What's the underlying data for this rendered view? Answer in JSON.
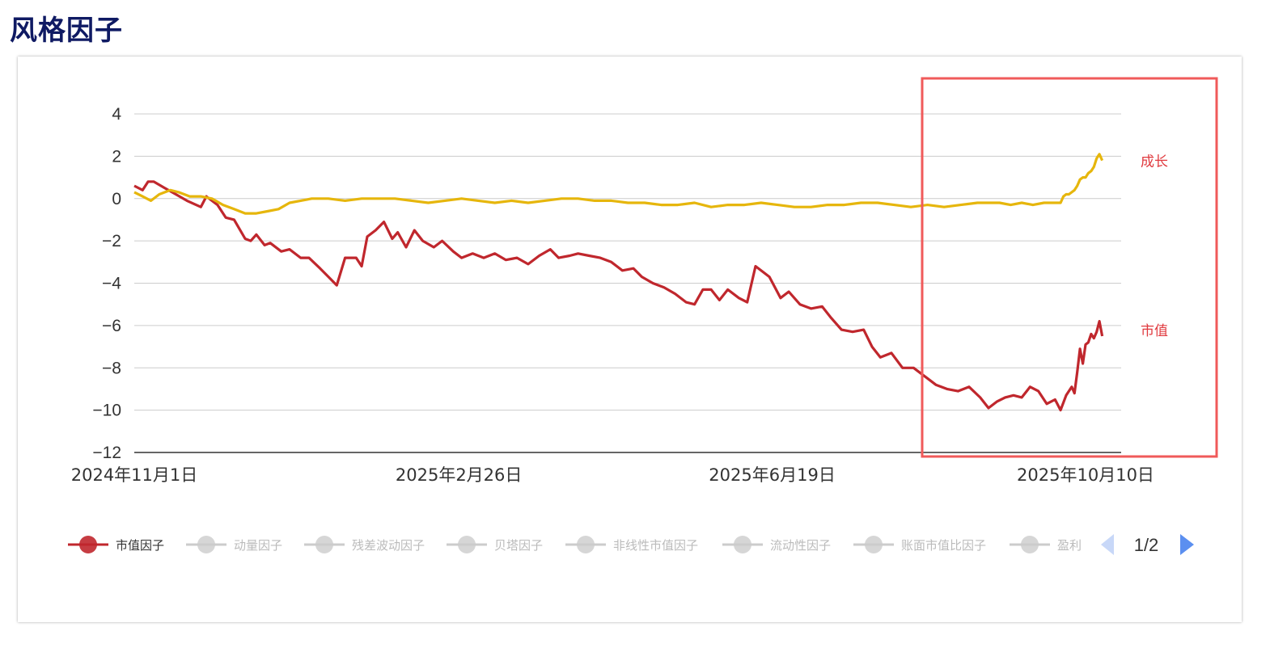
{
  "page": {
    "title": "风格因子"
  },
  "colors": {
    "market_cap": "#c0272d",
    "growth": "#e6b60c",
    "highlight": "#f05a5a",
    "inactive": "#cccccc",
    "pager_active": "#5b8ff0",
    "pager_inactive": "#c8d8f8"
  },
  "chart_data": {
    "type": "line",
    "yticks": [
      4,
      2,
      0,
      -2,
      -4,
      -6,
      -8,
      -10,
      -12
    ],
    "ylim": [
      -12,
      4
    ],
    "x_tick_labels": [
      "2024年11月1日",
      "2025年2月26日",
      "2025年6月19日",
      "2025年10月10日"
    ],
    "x_range": [
      "2024-11-01",
      "2025-10-10"
    ],
    "grid": true,
    "series": [
      {
        "name": "市值因子",
        "end_label": "市值",
        "color": "#c0272d",
        "points": [
          [
            "2024-11-01",
            0.6
          ],
          [
            "2024-11-04",
            0.4
          ],
          [
            "2024-11-06",
            0.8
          ],
          [
            "2024-11-08",
            0.8
          ],
          [
            "2024-11-12",
            0.5
          ],
          [
            "2024-11-16",
            0.2
          ],
          [
            "2024-11-20",
            -0.1
          ],
          [
            "2024-11-25",
            -0.4
          ],
          [
            "2024-11-27",
            0.1
          ],
          [
            "2024-12-01",
            -0.3
          ],
          [
            "2024-12-04",
            -0.9
          ],
          [
            "2024-12-07",
            -1.0
          ],
          [
            "2024-12-11",
            -1.9
          ],
          [
            "2024-12-13",
            -2.0
          ],
          [
            "2024-12-15",
            -1.7
          ],
          [
            "2024-12-18",
            -2.2
          ],
          [
            "2024-12-20",
            -2.1
          ],
          [
            "2024-12-24",
            -2.5
          ],
          [
            "2024-12-27",
            -2.4
          ],
          [
            "2024-12-31",
            -2.8
          ],
          [
            "2025-01-03",
            -2.8
          ],
          [
            "2025-01-07",
            -3.3
          ],
          [
            "2025-01-10",
            -3.7
          ],
          [
            "2025-01-13",
            -4.1
          ],
          [
            "2025-01-16",
            -2.8
          ],
          [
            "2025-01-20",
            -2.8
          ],
          [
            "2025-01-22",
            -3.2
          ],
          [
            "2025-01-24",
            -1.8
          ],
          [
            "2025-01-27",
            -1.5
          ],
          [
            "2025-01-30",
            -1.1
          ],
          [
            "2025-02-02",
            -1.9
          ],
          [
            "2025-02-04",
            -1.6
          ],
          [
            "2025-02-07",
            -2.3
          ],
          [
            "2025-02-10",
            -1.5
          ],
          [
            "2025-02-13",
            -2.0
          ],
          [
            "2025-02-17",
            -2.3
          ],
          [
            "2025-02-20",
            -2.0
          ],
          [
            "2025-02-24",
            -2.5
          ],
          [
            "2025-02-27",
            -2.8
          ],
          [
            "2025-03-03",
            -2.6
          ],
          [
            "2025-03-07",
            -2.8
          ],
          [
            "2025-03-11",
            -2.6
          ],
          [
            "2025-03-15",
            -2.9
          ],
          [
            "2025-03-19",
            -2.8
          ],
          [
            "2025-03-23",
            -3.1
          ],
          [
            "2025-03-27",
            -2.7
          ],
          [
            "2025-03-31",
            -2.4
          ],
          [
            "2025-04-03",
            -2.8
          ],
          [
            "2025-04-07",
            -2.7
          ],
          [
            "2025-04-10",
            -2.6
          ],
          [
            "2025-04-14",
            -2.7
          ],
          [
            "2025-04-18",
            -2.8
          ],
          [
            "2025-04-22",
            -3.0
          ],
          [
            "2025-04-26",
            -3.4
          ],
          [
            "2025-04-30",
            -3.3
          ],
          [
            "2025-05-03",
            -3.7
          ],
          [
            "2025-05-07",
            -4.0
          ],
          [
            "2025-05-11",
            -4.2
          ],
          [
            "2025-05-15",
            -4.5
          ],
          [
            "2025-05-19",
            -4.9
          ],
          [
            "2025-05-22",
            -5.0
          ],
          [
            "2025-05-25",
            -4.3
          ],
          [
            "2025-05-28",
            -4.3
          ],
          [
            "2025-05-31",
            -4.8
          ],
          [
            "2025-06-03",
            -4.3
          ],
          [
            "2025-06-07",
            -4.7
          ],
          [
            "2025-06-10",
            -4.9
          ],
          [
            "2025-06-13",
            -3.2
          ],
          [
            "2025-06-16",
            -3.5
          ],
          [
            "2025-06-18",
            -3.7
          ],
          [
            "2025-06-22",
            -4.7
          ],
          [
            "2025-06-25",
            -4.4
          ],
          [
            "2025-06-29",
            -5.0
          ],
          [
            "2025-07-03",
            -5.2
          ],
          [
            "2025-07-07",
            -5.1
          ],
          [
            "2025-07-10",
            -5.6
          ],
          [
            "2025-07-14",
            -6.2
          ],
          [
            "2025-07-18",
            -6.3
          ],
          [
            "2025-07-22",
            -6.2
          ],
          [
            "2025-07-25",
            -7.0
          ],
          [
            "2025-07-28",
            -7.5
          ],
          [
            "2025-08-01",
            -7.3
          ],
          [
            "2025-08-05",
            -8.0
          ],
          [
            "2025-08-09",
            -8.0
          ],
          [
            "2025-08-13",
            -8.4
          ],
          [
            "2025-08-17",
            -8.8
          ],
          [
            "2025-08-21",
            -9.0
          ],
          [
            "2025-08-25",
            -9.1
          ],
          [
            "2025-08-29",
            -8.9
          ],
          [
            "2025-09-02",
            -9.4
          ],
          [
            "2025-09-05",
            -9.9
          ],
          [
            "2025-09-08",
            -9.6
          ],
          [
            "2025-09-11",
            -9.4
          ],
          [
            "2025-09-14",
            -9.3
          ],
          [
            "2025-09-17",
            -9.4
          ],
          [
            "2025-09-20",
            -8.9
          ],
          [
            "2025-09-23",
            -9.1
          ],
          [
            "2025-09-26",
            -9.7
          ],
          [
            "2025-09-29",
            -9.5
          ],
          [
            "2025-10-01",
            -10.0
          ],
          [
            "2025-10-03",
            -9.3
          ],
          [
            "2025-10-05",
            -8.9
          ],
          [
            "2025-10-06",
            -9.2
          ],
          [
            "2025-10-07",
            -8.2
          ],
          [
            "2025-10-08",
            -7.1
          ],
          [
            "2025-10-09",
            -7.8
          ],
          [
            "2025-10-10",
            -6.9
          ],
          [
            "2025-10-11",
            -6.8
          ],
          [
            "2025-10-12",
            -6.4
          ],
          [
            "2025-10-13",
            -6.6
          ],
          [
            "2025-10-14",
            -6.3
          ],
          [
            "2025-10-15",
            -5.8
          ],
          [
            "2025-10-16",
            -6.5
          ]
        ]
      },
      {
        "name": "成长",
        "end_label": "成长",
        "color": "#e6b60c",
        "points": [
          [
            "2024-11-01",
            0.3
          ],
          [
            "2024-11-04",
            0.1
          ],
          [
            "2024-11-07",
            -0.1
          ],
          [
            "2024-11-10",
            0.2
          ],
          [
            "2024-11-14",
            0.4
          ],
          [
            "2024-11-17",
            0.3
          ],
          [
            "2024-11-21",
            0.1
          ],
          [
            "2024-11-25",
            0.1
          ],
          [
            "2024-11-29",
            0.0
          ],
          [
            "2024-12-03",
            -0.3
          ],
          [
            "2024-12-07",
            -0.5
          ],
          [
            "2024-12-11",
            -0.7
          ],
          [
            "2024-12-15",
            -0.7
          ],
          [
            "2024-12-19",
            -0.6
          ],
          [
            "2024-12-23",
            -0.5
          ],
          [
            "2024-12-27",
            -0.2
          ],
          [
            "2024-12-31",
            -0.1
          ],
          [
            "2025-01-04",
            0.0
          ],
          [
            "2025-01-10",
            0.0
          ],
          [
            "2025-01-16",
            -0.1
          ],
          [
            "2025-01-22",
            0.0
          ],
          [
            "2025-01-28",
            0.0
          ],
          [
            "2025-02-03",
            0.0
          ],
          [
            "2025-02-09",
            -0.1
          ],
          [
            "2025-02-15",
            -0.2
          ],
          [
            "2025-02-21",
            -0.1
          ],
          [
            "2025-02-27",
            0.0
          ],
          [
            "2025-03-05",
            -0.1
          ],
          [
            "2025-03-11",
            -0.2
          ],
          [
            "2025-03-17",
            -0.1
          ],
          [
            "2025-03-23",
            -0.2
          ],
          [
            "2025-03-29",
            -0.1
          ],
          [
            "2025-04-04",
            0.0
          ],
          [
            "2025-04-10",
            0.0
          ],
          [
            "2025-04-16",
            -0.1
          ],
          [
            "2025-04-22",
            -0.1
          ],
          [
            "2025-04-28",
            -0.2
          ],
          [
            "2025-05-04",
            -0.2
          ],
          [
            "2025-05-10",
            -0.3
          ],
          [
            "2025-05-16",
            -0.3
          ],
          [
            "2025-05-22",
            -0.2
          ],
          [
            "2025-05-28",
            -0.4
          ],
          [
            "2025-06-03",
            -0.3
          ],
          [
            "2025-06-09",
            -0.3
          ],
          [
            "2025-06-15",
            -0.2
          ],
          [
            "2025-06-21",
            -0.3
          ],
          [
            "2025-06-27",
            -0.4
          ],
          [
            "2025-07-03",
            -0.4
          ],
          [
            "2025-07-09",
            -0.3
          ],
          [
            "2025-07-15",
            -0.3
          ],
          [
            "2025-07-21",
            -0.2
          ],
          [
            "2025-07-27",
            -0.2
          ],
          [
            "2025-08-02",
            -0.3
          ],
          [
            "2025-08-08",
            -0.4
          ],
          [
            "2025-08-14",
            -0.3
          ],
          [
            "2025-08-20",
            -0.4
          ],
          [
            "2025-08-26",
            -0.3
          ],
          [
            "2025-09-01",
            -0.2
          ],
          [
            "2025-09-05",
            -0.2
          ],
          [
            "2025-09-09",
            -0.2
          ],
          [
            "2025-09-13",
            -0.3
          ],
          [
            "2025-09-17",
            -0.2
          ],
          [
            "2025-09-21",
            -0.3
          ],
          [
            "2025-09-25",
            -0.2
          ],
          [
            "2025-09-28",
            -0.2
          ],
          [
            "2025-10-01",
            -0.2
          ],
          [
            "2025-10-02",
            0.1
          ],
          [
            "2025-10-03",
            0.2
          ],
          [
            "2025-10-04",
            0.2
          ],
          [
            "2025-10-05",
            0.3
          ],
          [
            "2025-10-06",
            0.4
          ],
          [
            "2025-10-07",
            0.6
          ],
          [
            "2025-10-08",
            0.9
          ],
          [
            "2025-10-09",
            1.0
          ],
          [
            "2025-10-10",
            1.0
          ],
          [
            "2025-10-11",
            1.2
          ],
          [
            "2025-10-12",
            1.3
          ],
          [
            "2025-10-13",
            1.5
          ],
          [
            "2025-10-14",
            1.9
          ],
          [
            "2025-10-15",
            2.1
          ],
          [
            "2025-10-16",
            1.8
          ]
        ]
      }
    ]
  },
  "legend": {
    "items": [
      {
        "label": "市值因子",
        "active": true
      },
      {
        "label": "动量因子",
        "active": false
      },
      {
        "label": "残差波动因子",
        "active": false
      },
      {
        "label": "贝塔因子",
        "active": false
      },
      {
        "label": "非线性市值因子",
        "active": false
      },
      {
        "label": "流动性因子",
        "active": false
      },
      {
        "label": "账面市值比因子",
        "active": false
      },
      {
        "label": "盈利",
        "active": false
      }
    ],
    "pager": "1/2"
  }
}
